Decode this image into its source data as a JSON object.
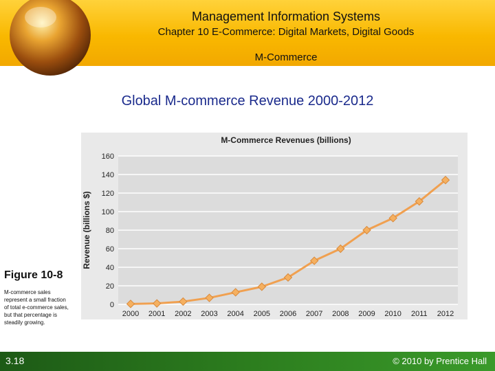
{
  "header": {
    "title": "Management Information Systems",
    "chapter": "Chapter 10 E-Commerce: Digital Markets, Digital Goods",
    "section": "M-Commerce"
  },
  "slide_title": "Global M-commerce Revenue 2000-2012",
  "figure": {
    "label": "Figure 10-8",
    "caption": "M-commerce sales represent a small fraction of total e-commerce sales, but that percentage is steadily growing."
  },
  "footer": {
    "slide_number": "3.18",
    "copyright": "© 2010 by Prentice Hall"
  },
  "chart_data": {
    "type": "line",
    "title": "M-Commerce Revenues (billions)",
    "xlabel": "",
    "ylabel": "Revenue (billions $)",
    "ylim": [
      0,
      160
    ],
    "yticks": [
      0,
      20,
      40,
      60,
      80,
      100,
      120,
      140,
      160
    ],
    "categories": [
      "2000",
      "2001",
      "2002",
      "2003",
      "2004",
      "2005",
      "2006",
      "2007",
      "2008",
      "2009",
      "2010",
      "2011",
      "2012"
    ],
    "series": [
      {
        "values": [
          0.5,
          1,
          3,
          7,
          13,
          19,
          29,
          47,
          60,
          80,
          93,
          111,
          134
        ]
      }
    ],
    "grid": true,
    "colors": {
      "line": "#f0a050",
      "marker": "#f5b060",
      "grid": "#ffffff",
      "background": "#e9e9e9"
    }
  }
}
